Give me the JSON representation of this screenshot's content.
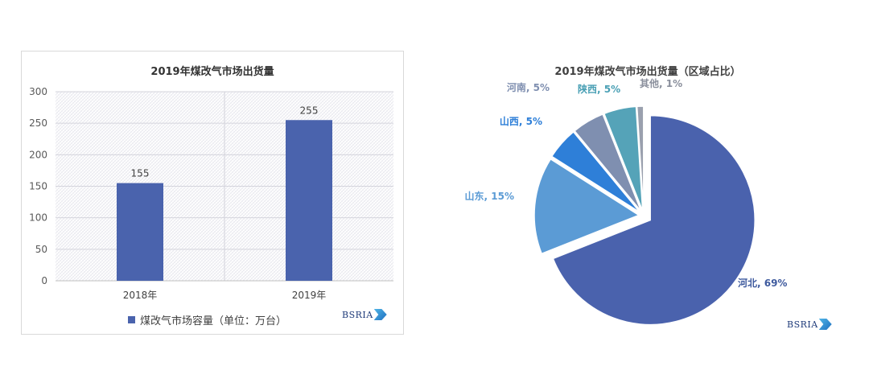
{
  "chart_data": [
    {
      "type": "bar",
      "title": "2019年煤改气市场出货量",
      "categories": [
        "2018年",
        "2019年"
      ],
      "series": [
        {
          "name": "煤改气市场容量（单位：万台）",
          "values": [
            155,
            255
          ],
          "color": "#4a63ad"
        }
      ],
      "ylim": [
        0,
        300
      ],
      "yticks": [
        0,
        50,
        100,
        150,
        200,
        250,
        300
      ],
      "grid": true,
      "legend": "bottom",
      "logo_text": "BSRIA"
    },
    {
      "type": "pie",
      "title": "2019年煤改气市场出货量（区域占比）",
      "slices": [
        {
          "label": "河北, 69%",
          "name": "河北",
          "value": 69,
          "color": "#4a62ad",
          "label_color": "#3e5a9e"
        },
        {
          "label": "山东, 15%",
          "name": "山东",
          "value": 15,
          "color": "#5b9bd5",
          "label_color": "#5b9bd5"
        },
        {
          "label": "山西, 5%",
          "name": "山西",
          "value": 5,
          "color": "#2e7fd8",
          "label_color": "#2e7fd8"
        },
        {
          "label": "河南, 5%",
          "name": "河南",
          "value": 5,
          "color": "#7f8fb0",
          "label_color": "#7f8fb0"
        },
        {
          "label": "陕西, 5%",
          "name": "陕西",
          "value": 5,
          "color": "#55a3b8",
          "label_color": "#4aa0b5"
        },
        {
          "label": "其他, 1%",
          "name": "其他",
          "value": 1,
          "color": "#9aa0ae",
          "label_color": "#8a8f9c"
        }
      ],
      "exploded": true,
      "logo_text": "BSRIA"
    }
  ]
}
